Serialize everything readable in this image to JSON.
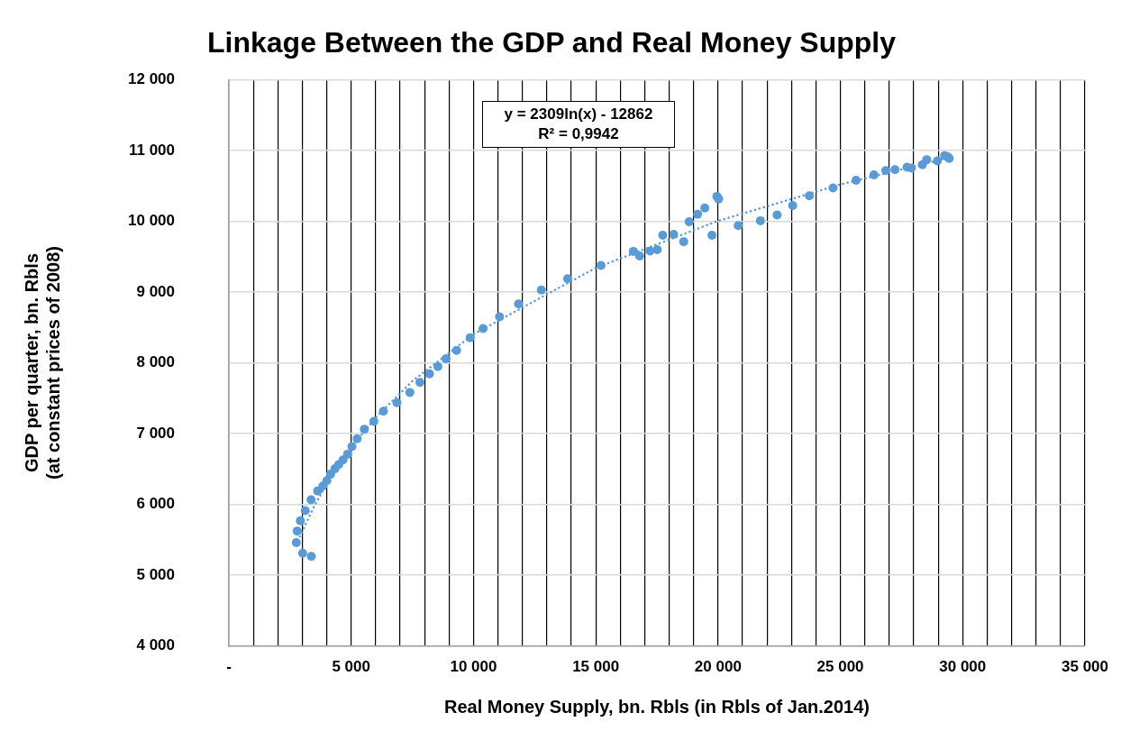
{
  "chart_data": {
    "type": "scatter",
    "title": "Linkage Between the GDP and Real Money Supply",
    "xlabel": "Real Money Supply, bn. Rbls (in Rbls of Jan.2014)",
    "ylabel": "GDP per quarter, bn. Rbls\n(at constant prices of 2008)",
    "annotations": [
      "y = 2309ln(x) - 12862\nR² = 0,9942"
    ],
    "xlim": [
      0,
      35000
    ],
    "xticks": [
      {
        "value": 0,
        "label": "-"
      },
      {
        "value": 1000,
        "label": null
      },
      {
        "value": 2000,
        "label": null
      },
      {
        "value": 3000,
        "label": null
      },
      {
        "value": 4000,
        "label": null
      },
      {
        "value": 5000,
        "label": "5 000"
      },
      {
        "value": 6000,
        "label": null
      },
      {
        "value": 7000,
        "label": null
      },
      {
        "value": 8000,
        "label": null
      },
      {
        "value": 9000,
        "label": null
      },
      {
        "value": 10000,
        "label": "10 000"
      },
      {
        "value": 11000,
        "label": null
      },
      {
        "value": 12000,
        "label": null
      },
      {
        "value": 13000,
        "label": null
      },
      {
        "value": 14000,
        "label": null
      },
      {
        "value": 15000,
        "label": "15 000"
      },
      {
        "value": 16000,
        "label": null
      },
      {
        "value": 17000,
        "label": null
      },
      {
        "value": 18000,
        "label": null
      },
      {
        "value": 19000,
        "label": null
      },
      {
        "value": 20000,
        "label": "20 000"
      },
      {
        "value": 21000,
        "label": null
      },
      {
        "value": 22000,
        "label": null
      },
      {
        "value": 23000,
        "label": null
      },
      {
        "value": 24000,
        "label": null
      },
      {
        "value": 25000,
        "label": "25 000"
      },
      {
        "value": 26000,
        "label": null
      },
      {
        "value": 27000,
        "label": null
      },
      {
        "value": 28000,
        "label": null
      },
      {
        "value": 29000,
        "label": null
      },
      {
        "value": 30000,
        "label": "30 000"
      },
      {
        "value": 31000,
        "label": null
      },
      {
        "value": 32000,
        "label": null
      },
      {
        "value": 33000,
        "label": null
      },
      {
        "value": 34000,
        "label": null
      },
      {
        "value": 35000,
        "label": "35 000"
      }
    ],
    "ylim": [
      4000,
      12000
    ],
    "yticks": [
      {
        "value": 4000,
        "label": "4 000"
      },
      {
        "value": 5000,
        "label": "5 000"
      },
      {
        "value": 6000,
        "label": "6 000"
      },
      {
        "value": 7000,
        "label": "7 000"
      },
      {
        "value": 8000,
        "label": "8 000"
      },
      {
        "value": 9000,
        "label": "9 000"
      },
      {
        "value": 10000,
        "label": "10 000"
      },
      {
        "value": 11000,
        "label": "11 000"
      },
      {
        "value": 12000,
        "label": "12 000"
      }
    ],
    "grid": true,
    "legend": false,
    "marker": "circle",
    "series": [
      {
        "color": "#5b9bd5",
        "x": [
          3370,
          3017,
          2758,
          2793,
          2923,
          3124,
          3359,
          3630,
          3842,
          4007,
          4160,
          4337,
          4490,
          4667,
          4855,
          5032,
          5244,
          5540,
          5929,
          6317,
          6870,
          7400,
          7813,
          8202,
          8545,
          8874,
          9308,
          9863,
          10394,
          11066,
          11843,
          12773,
          13848,
          15214,
          16536,
          16794,
          17219,
          17513,
          17738,
          18184,
          18596,
          18819,
          19162,
          19456,
          19951,
          20022,
          19751,
          20823,
          21731,
          22414,
          23051,
          23733,
          24701,
          25642,
          26373,
          26857,
          27233,
          27727,
          27904,
          28353,
          28530,
          28965,
          29262,
          29449,
          29390
        ],
        "values": [
          5266,
          5310,
          5460,
          5623,
          5769,
          5911,
          6065,
          6190,
          6258,
          6336,
          6426,
          6503,
          6560,
          6628,
          6709,
          6817,
          6928,
          7062,
          7173,
          7315,
          7436,
          7581,
          7723,
          7843,
          7946,
          8058,
          8174,
          8354,
          8483,
          8651,
          8831,
          9028,
          9188,
          9376,
          9574,
          9510,
          9580,
          9598,
          9801,
          9814,
          9711,
          9994,
          10097,
          10187,
          10351,
          10316,
          9801,
          9939,
          10007,
          10089,
          10222,
          10360,
          10471,
          10579,
          10656,
          10716,
          10729,
          10763,
          10750,
          10798,
          10870,
          10853,
          10927,
          10888,
          10909
        ]
      },
      {
        "type": "line",
        "color": "#5b9bd5",
        "marker": "none",
        "line_style": "dotted",
        "x": [
          2900,
          3500,
          4000,
          5000,
          6000,
          7500,
          10000,
          15000,
          20000,
          25000,
          29500
        ],
        "values": [
          5546,
          5981,
          6289,
          6804,
          7225,
          7741,
          8405,
          9341,
          10005,
          10520,
          10902
        ]
      }
    ]
  }
}
